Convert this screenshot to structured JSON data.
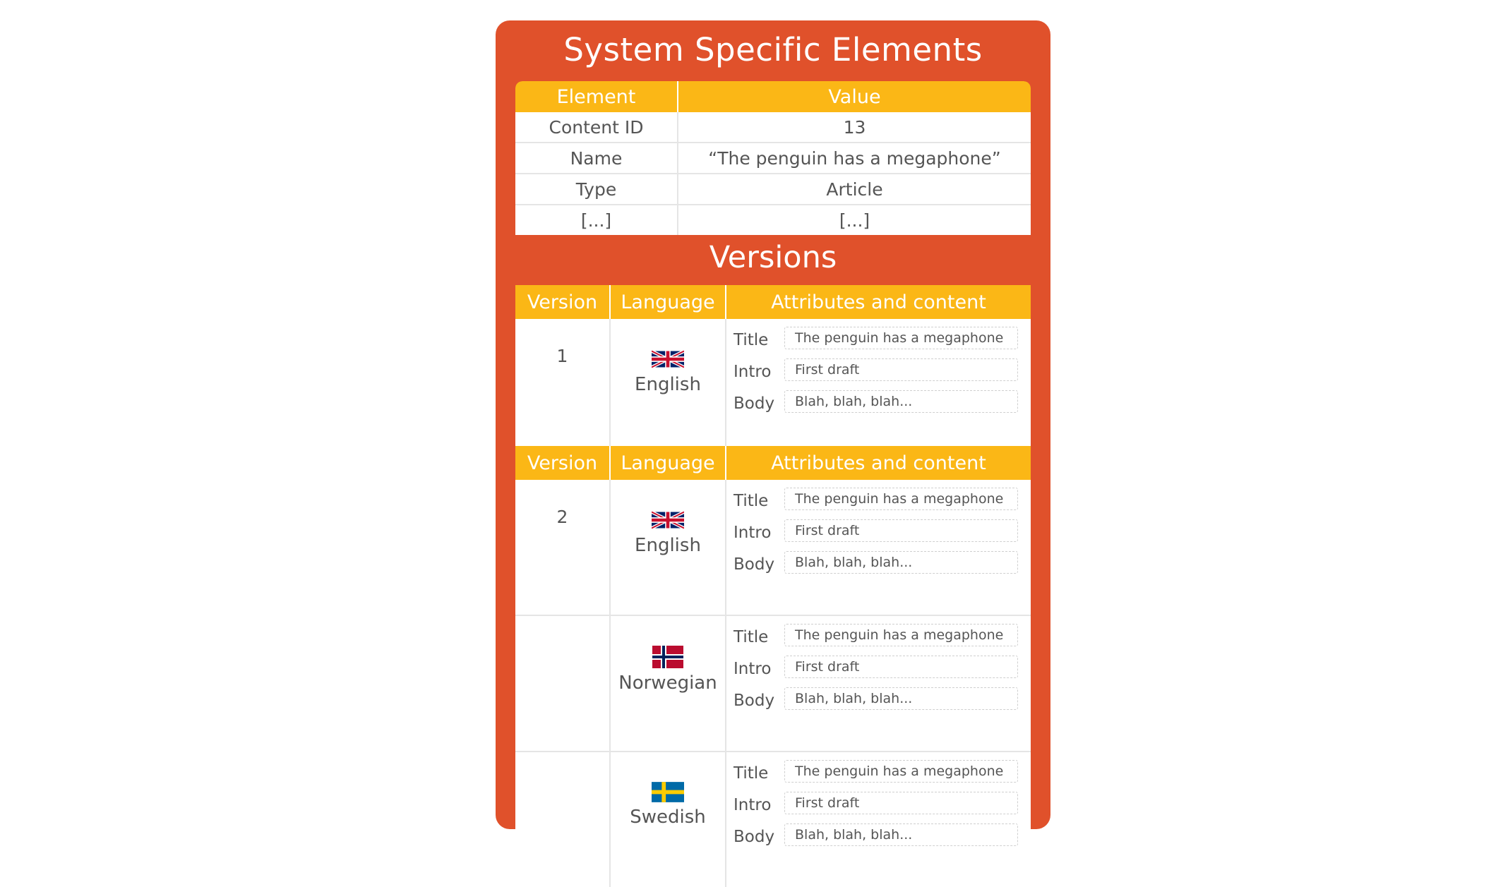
{
  "title": "System Specific Elements",
  "system_table": {
    "headers": [
      "Element",
      "Value"
    ],
    "rows": [
      [
        "Content ID",
        "13"
      ],
      [
        "Name",
        "“The penguin has a megaphone”"
      ],
      [
        "Type",
        "Article"
      ],
      [
        "[...]",
        "[...]"
      ]
    ]
  },
  "versions_title": "Versions",
  "version_headers": [
    "Version",
    "Language",
    "Attributes and content"
  ],
  "versions": [
    {
      "number": "1",
      "languages": [
        {
          "name": "English",
          "flag": "uk-flag",
          "attributes": [
            {
              "label": "Title",
              "value": "The penguin has a megaphone"
            },
            {
              "label": "Intro",
              "value": "First draft"
            },
            {
              "label": "Body",
              "value": "Blah, blah, blah..."
            }
          ]
        }
      ]
    },
    {
      "number": "2",
      "languages": [
        {
          "name": "English",
          "flag": "uk-flag",
          "attributes": [
            {
              "label": "Title",
              "value": "The penguin has a megaphone"
            },
            {
              "label": "Intro",
              "value": "First draft"
            },
            {
              "label": "Body",
              "value": "Blah, blah, blah..."
            }
          ]
        },
        {
          "name": "Norwegian",
          "flag": "norway-flag",
          "attributes": [
            {
              "label": "Title",
              "value": "The penguin has a megaphone"
            },
            {
              "label": "Intro",
              "value": "First draft"
            },
            {
              "label": "Body",
              "value": "Blah, blah, blah..."
            }
          ]
        },
        {
          "name": "Swedish",
          "flag": "sweden-flag",
          "attributes": [
            {
              "label": "Title",
              "value": "The penguin has a megaphone"
            },
            {
              "label": "Intro",
              "value": "First draft"
            },
            {
              "label": "Body",
              "value": "Blah, blah, blah..."
            }
          ]
        }
      ]
    }
  ],
  "colors": {
    "card": "#e0512b",
    "header": "#fbb716",
    "text": "#555555"
  }
}
